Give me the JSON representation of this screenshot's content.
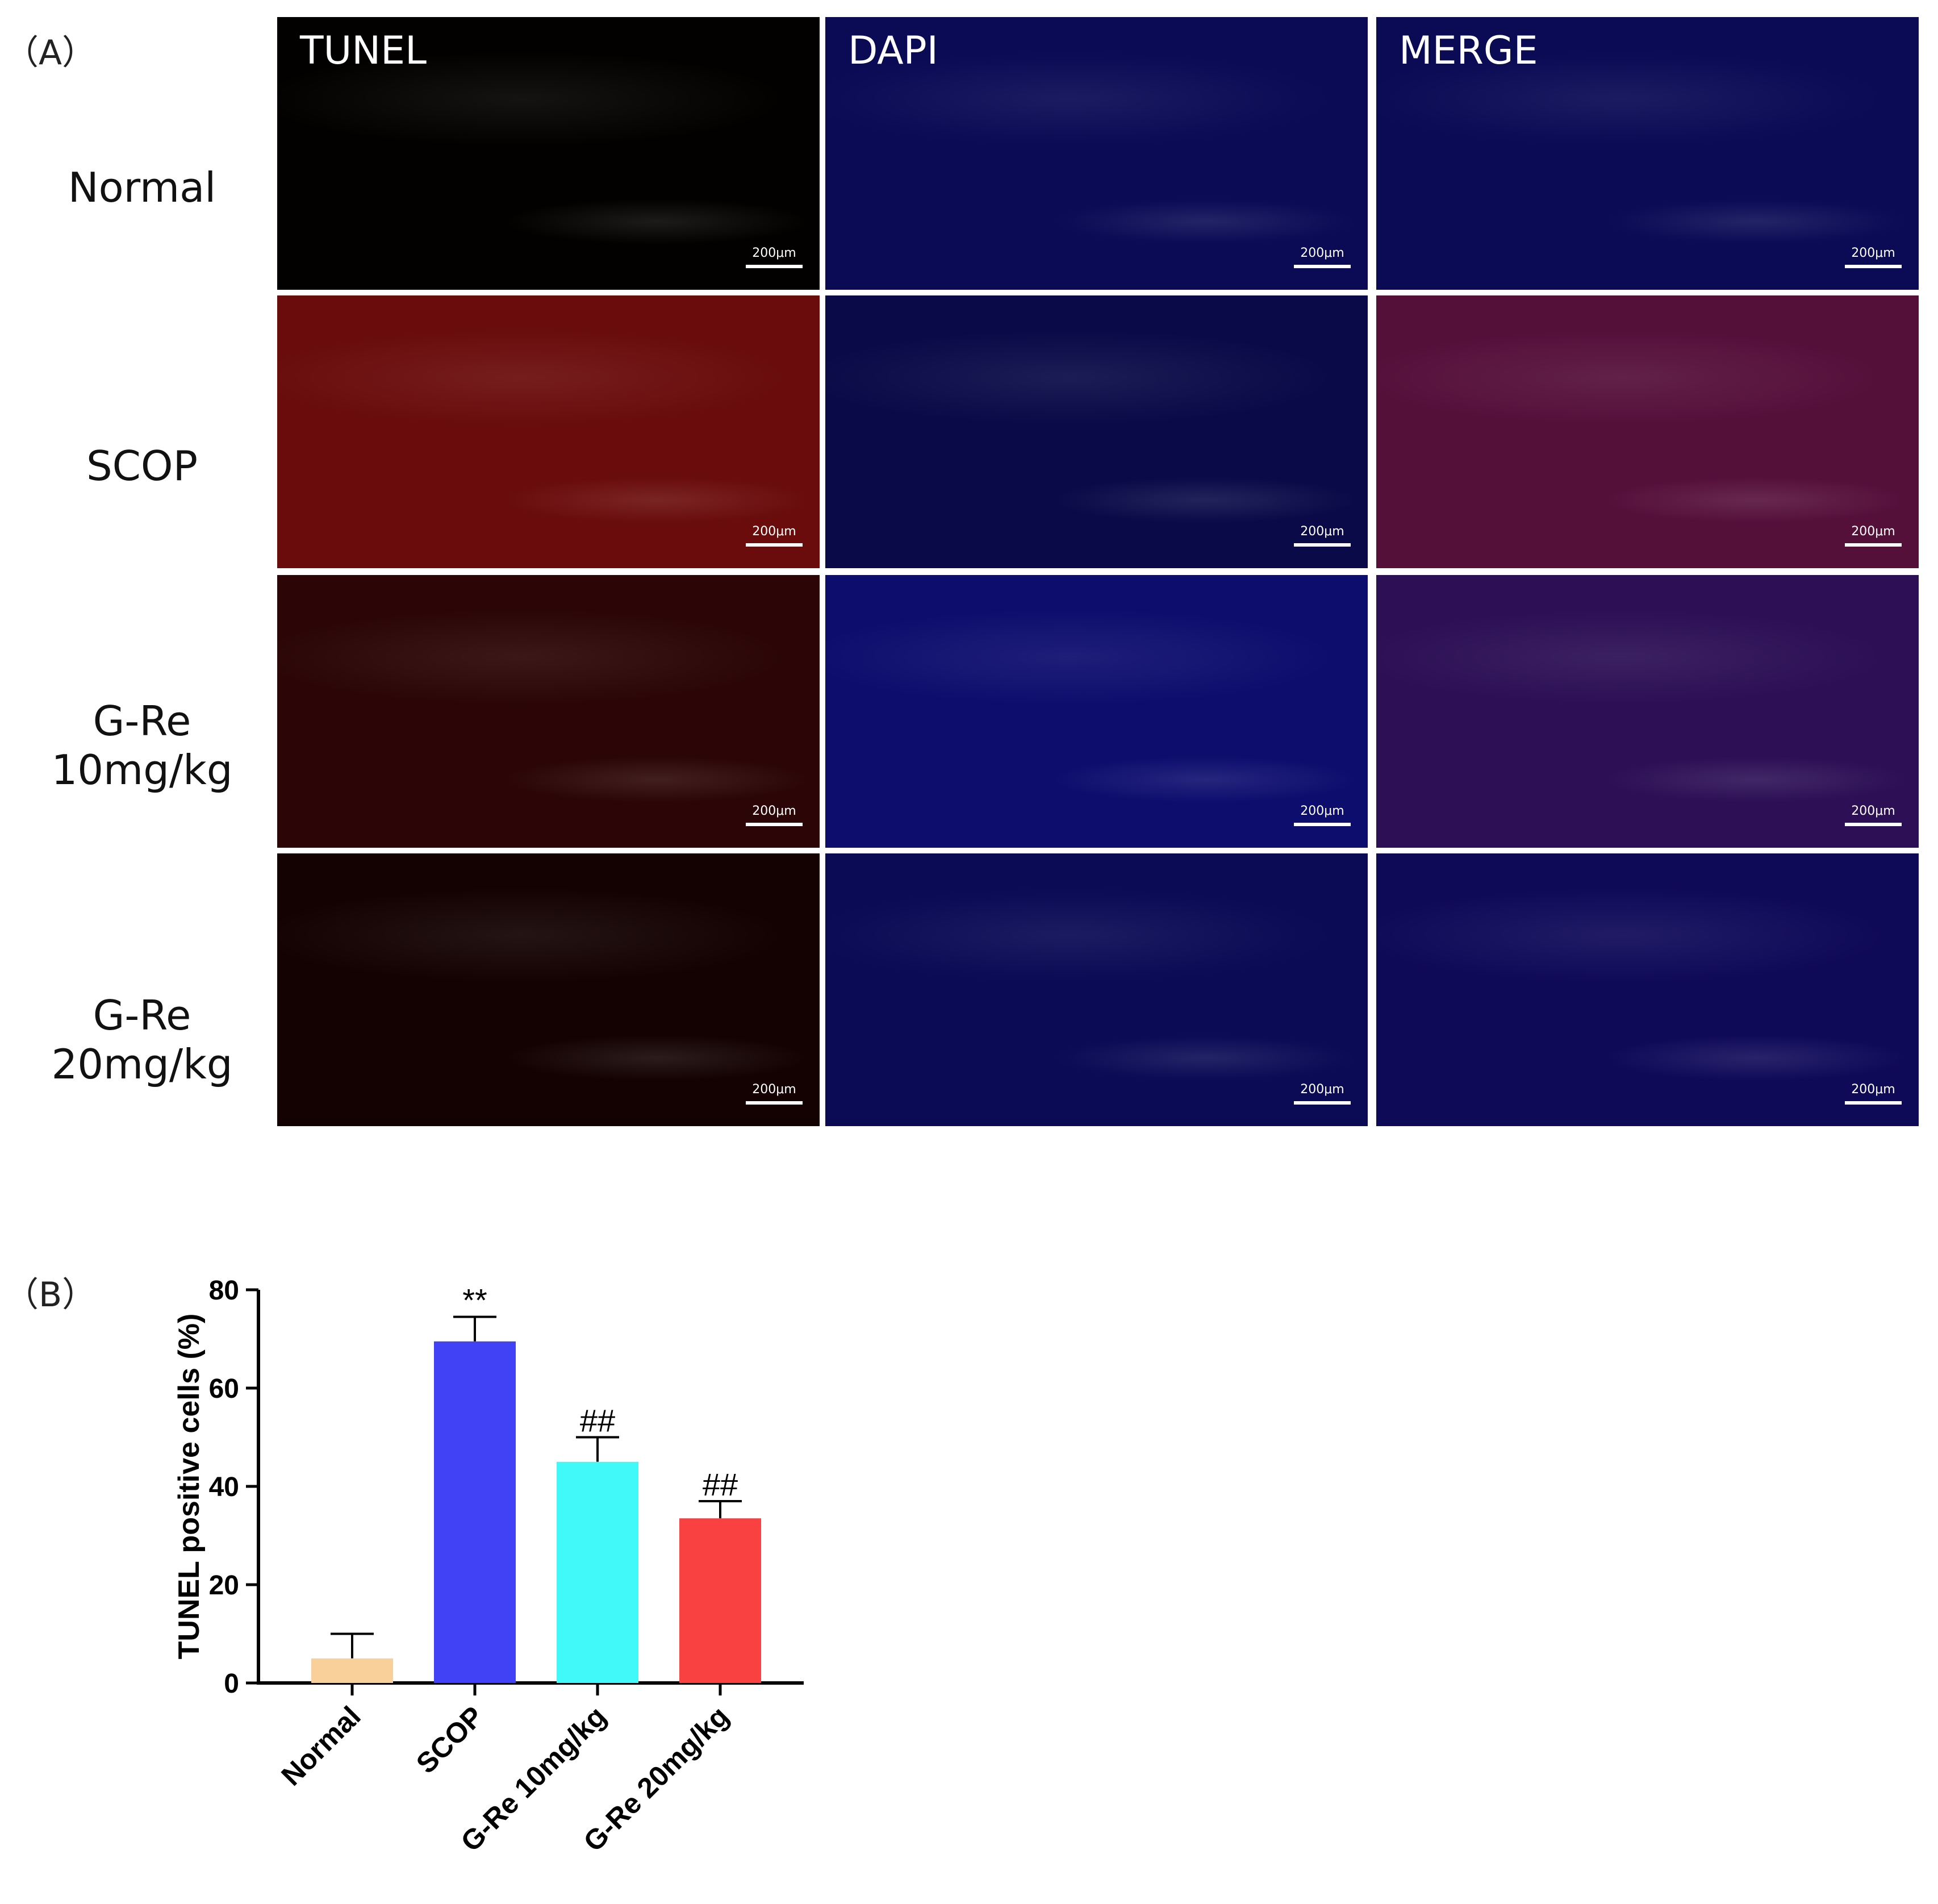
{
  "panel_a": {
    "letter": "（A）",
    "columns": [
      "TUNEL",
      "DAPI",
      "MERGE"
    ],
    "rows": [
      {
        "label": "Normal",
        "tunel": "#030000",
        "dapi": "#0a0a55",
        "merge": "#0a0a55"
      },
      {
        "label": "SCOP",
        "tunel": "#6a0c0c",
        "dapi": "#0a0a48",
        "merge": "#55103a"
      },
      {
        "label": "G-Re\n10mg/kg",
        "tunel": "#2c0606",
        "dapi": "#0d0d6e",
        "merge": "#2c0f55"
      },
      {
        "label": "G-Re\n20mg/kg",
        "tunel": "#140202",
        "dapi": "#0a0a55",
        "merge": "#0f0a58"
      }
    ],
    "scale_bar": "200μm"
  },
  "panel_b": {
    "letter": "（B）"
  },
  "chart_data": {
    "type": "bar",
    "categories": [
      "Normal",
      "SCOP",
      "G-Re 10mg/kg",
      "G-Re 20mg/kg"
    ],
    "values": [
      5,
      69.5,
      45,
      33.5
    ],
    "errors": [
      5,
      5,
      5,
      3.5
    ],
    "annotations": [
      "",
      "**",
      "##",
      "##"
    ],
    "colors": [
      "#f9cf9a",
      "#4141f5",
      "#41f9f9",
      "#f94141"
    ],
    "ylabel": "TUNEL positive cells (%)",
    "xlabel": "",
    "ylim": [
      0,
      80
    ],
    "yticks": [
      0,
      20,
      40,
      60,
      80
    ],
    "grid": false
  }
}
